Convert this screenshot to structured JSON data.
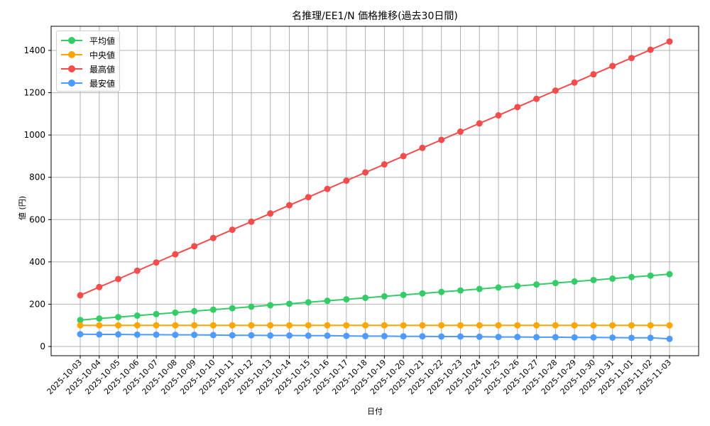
{
  "chart_data": {
    "type": "line",
    "title": "名推理/EE1/N 価格推移(過去30日間)",
    "xlabel": "日付",
    "ylabel": "値 (円)",
    "ylim": [
      -40,
      1510
    ],
    "yticks": [
      0,
      200,
      400,
      600,
      800,
      1000,
      1200,
      1400
    ],
    "grid": true,
    "legend_position": "upper left",
    "x": [
      "2025-10-03",
      "2025-10-04",
      "2025-10-05",
      "2025-10-06",
      "2025-10-07",
      "2025-10-08",
      "2025-10-09",
      "2025-10-10",
      "2025-10-11",
      "2025-10-12",
      "2025-10-13",
      "2025-10-14",
      "2025-10-15",
      "2025-10-16",
      "2025-10-17",
      "2025-10-18",
      "2025-10-19",
      "2025-10-20",
      "2025-10-21",
      "2025-10-22",
      "2025-10-23",
      "2025-10-24",
      "2025-10-25",
      "2025-10-26",
      "2025-10-27",
      "2025-10-28",
      "2025-10-29",
      "2025-10-30",
      "2025-10-31",
      "2025-11-01",
      "2025-11-02",
      "2025-11-03"
    ],
    "series": [
      {
        "name": "平均値",
        "color": "#33cc66",
        "values": [
          125,
          132,
          139,
          146,
          153,
          160,
          167,
          174,
          181,
          188,
          195,
          202,
          209,
          216,
          223,
          230,
          237,
          244,
          251,
          258,
          265,
          272,
          279,
          286,
          293,
          300,
          307,
          314,
          321,
          328,
          335,
          342
        ]
      },
      {
        "name": "中央値",
        "color": "#ffa500",
        "values": [
          100,
          100,
          100,
          100,
          100,
          100,
          100,
          100,
          100,
          100,
          100,
          100,
          100,
          100,
          100,
          100,
          100,
          100,
          100,
          100,
          100,
          100,
          100,
          100,
          100,
          100,
          100,
          100,
          100,
          100,
          100,
          100
        ]
      },
      {
        "name": "最高値",
        "color": "#f44b4b",
        "values": [
          242,
          281,
          319,
          358,
          397,
          436,
          474,
          513,
          552,
          590,
          629,
          668,
          706,
          745,
          784,
          823,
          861,
          900,
          939,
          977,
          1016,
          1055,
          1093,
          1132,
          1171,
          1210,
          1248,
          1287,
          1326,
          1364,
          1403,
          1442
        ]
      },
      {
        "name": "最安値",
        "color": "#4d9bff",
        "values": [
          58,
          57,
          57,
          56,
          56,
          55,
          55,
          54,
          53,
          53,
          52,
          52,
          51,
          51,
          50,
          49,
          49,
          48,
          48,
          47,
          47,
          46,
          45,
          45,
          44,
          44,
          43,
          43,
          42,
          41,
          41,
          36
        ]
      }
    ]
  },
  "legend": {
    "items": [
      {
        "label": "平均値",
        "color": "#33cc66"
      },
      {
        "label": "中央値",
        "color": "#ffa500"
      },
      {
        "label": "最高値",
        "color": "#f44b4b"
      },
      {
        "label": "最安値",
        "color": "#4d9bff"
      }
    ]
  }
}
